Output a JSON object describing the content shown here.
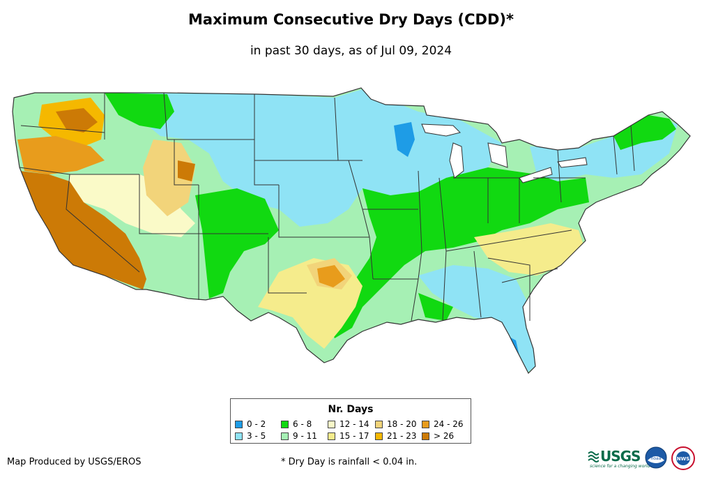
{
  "title": "Maximum Consecutive Dry Days (CDD)*",
  "subtitle": "in past 30 days, as of Jul 09, 2024",
  "legend": {
    "title": "Nr. Days",
    "classes": [
      {
        "label": "0 - 2",
        "color": "#1e9ce6"
      },
      {
        "label": "3 - 5",
        "color": "#8fe3f5"
      },
      {
        "label": "6 - 8",
        "color": "#11d911"
      },
      {
        "label": "9 - 11",
        "color": "#a6f0b4"
      },
      {
        "label": "12 - 14",
        "color": "#fafac8"
      },
      {
        "label": "15 - 17",
        "color": "#f5ec8c"
      },
      {
        "label": "18 - 20",
        "color": "#f2d47a"
      },
      {
        "label": "21 - 23",
        "color": "#f5b800"
      },
      {
        "label": "24 - 26",
        "color": "#e89c1c"
      },
      {
        "label": "> 26",
        "color": "#cc7a06"
      }
    ]
  },
  "map": {
    "region": "Contiguous United States",
    "ocean_color": "#ffffff",
    "border_color": "#333333"
  },
  "footer": {
    "credit": "Map Produced by USGS/EROS",
    "footnote": "* Dry Day is rainfall < 0.04 in."
  },
  "logos": {
    "usgs_text": "USGS",
    "usgs_tagline": "science for a changing world",
    "noaa_text": "noaa",
    "nws_text": "NWS"
  }
}
